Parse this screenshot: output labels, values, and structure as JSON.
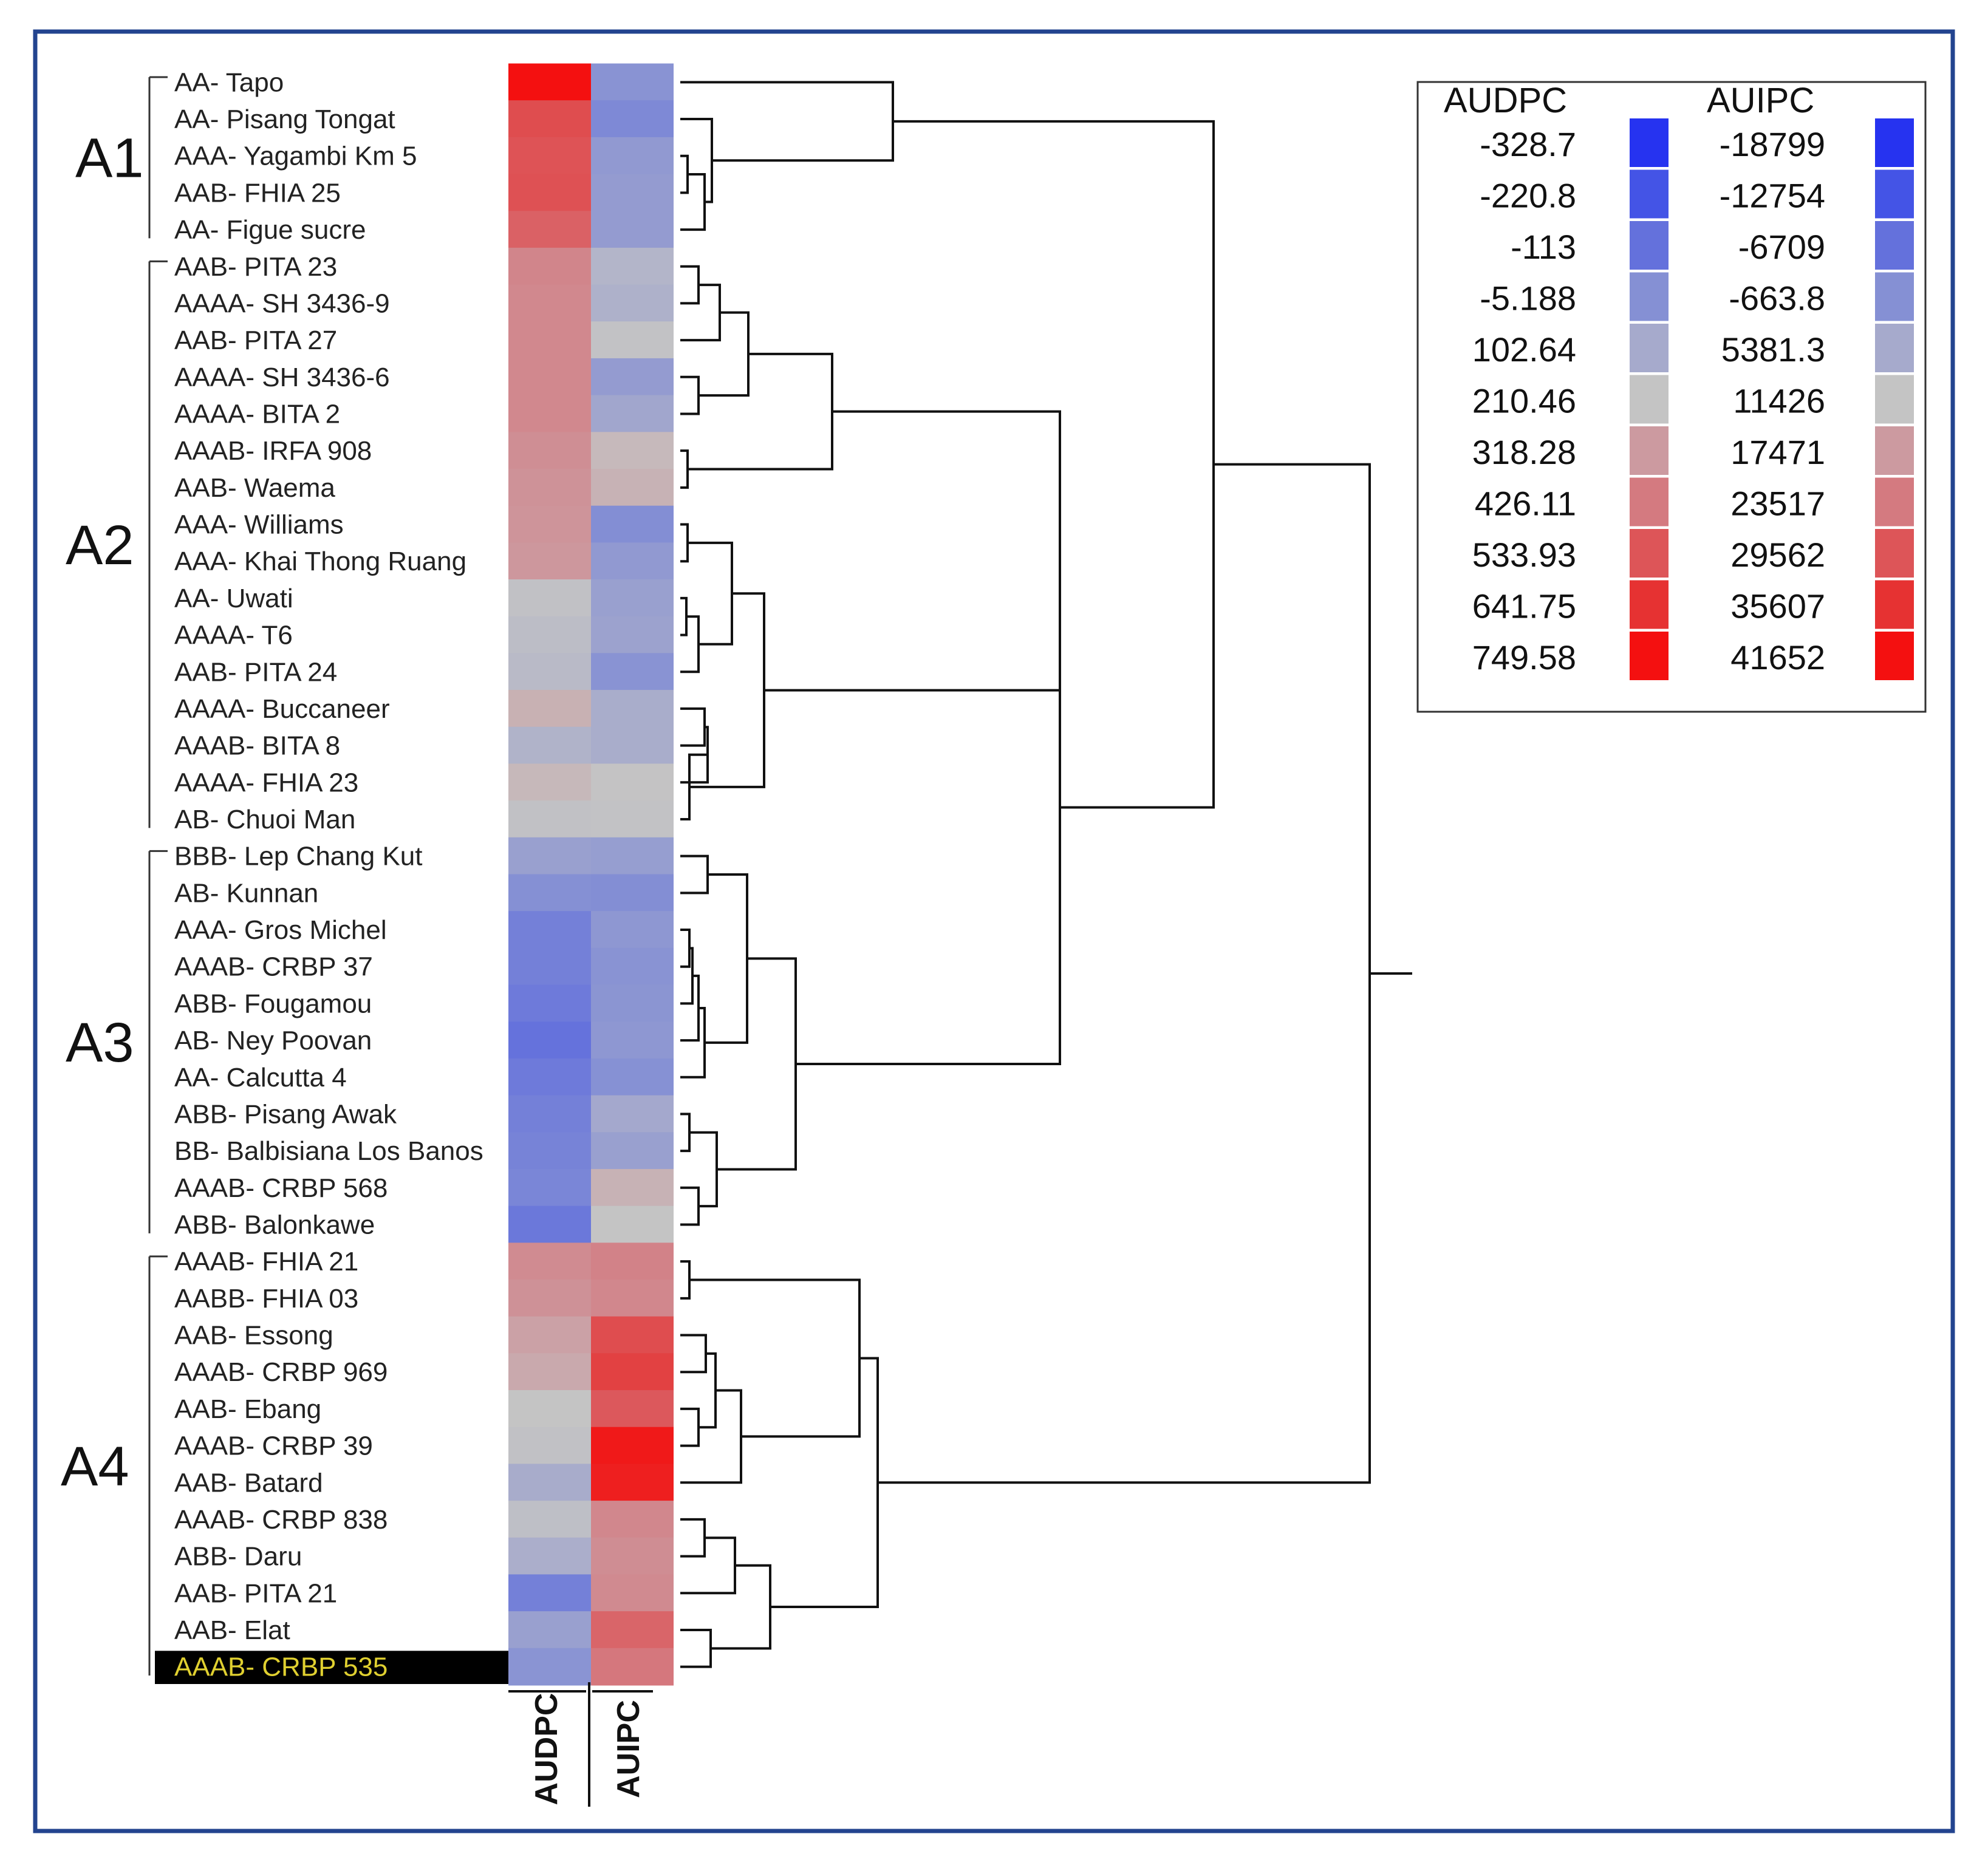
{
  "chart_data": {
    "type": "heatmap",
    "title": "",
    "columns": [
      "AUDPC",
      "AUIPC"
    ],
    "groups": [
      "A1",
      "A2",
      "A3",
      "A4"
    ],
    "rows": [
      {
        "group": "A1",
        "genome": "AA",
        "cultivar": "Tapo",
        "label": "AA- Tapo",
        "audpc": 749.58,
        "auipc": 0
      },
      {
        "group": "A1",
        "genome": "AA",
        "cultivar": "Pisang Tongat",
        "label": "AA- Pisang Tongat",
        "audpc": 560,
        "auipc": -2000
      },
      {
        "group": "A1",
        "genome": "AAA",
        "cultivar": "Yagambi Km 5",
        "label": "AAA- Yagambi Km 5",
        "audpc": 540,
        "auipc": 1500
      },
      {
        "group": "A1",
        "genome": "AAB",
        "cultivar": "FHIA 25",
        "label": "AAB- FHIA 25",
        "audpc": 545,
        "auipc": 2000
      },
      {
        "group": "A1",
        "genome": "AA",
        "cultivar": "Figue sucre",
        "label": "AA- Figue sucre",
        "audpc": 500,
        "auipc": 2000
      },
      {
        "group": "A2",
        "genome": "AAB",
        "cultivar": "PITA 23",
        "label": "AAB- PITA 23",
        "audpc": 390,
        "auipc": 8000
      },
      {
        "group": "A2",
        "genome": "AAAA",
        "cultivar": "SH 3436-9",
        "label": "AAAA- SH 3436-9",
        "audpc": 380,
        "auipc": 7000
      },
      {
        "group": "A2",
        "genome": "AAB",
        "cultivar": "PITA 27",
        "label": "AAB- PITA 27",
        "audpc": 380,
        "auipc": 11000
      },
      {
        "group": "A2",
        "genome": "AAAA",
        "cultivar": "SH 3436-6",
        "label": "AAAA- SH 3436-6",
        "audpc": 380,
        "auipc": 2000
      },
      {
        "group": "A2",
        "genome": "AAAA",
        "cultivar": "BITA 2",
        "label": "AAAA- BITA 2",
        "audpc": 380,
        "auipc": 4500
      },
      {
        "group": "A2",
        "genome": "AAAB",
        "cultivar": "IRFA 908",
        "label": "AAAB- IRFA 908",
        "audpc": 360,
        "auipc": 13000
      },
      {
        "group": "A2",
        "genome": "AAB",
        "cultivar": "Waema",
        "label": "AAB- Waema",
        "audpc": 345,
        "auipc": 14000
      },
      {
        "group": "A2",
        "genome": "AAA",
        "cultivar": "Williams",
        "label": "AAA- Williams",
        "audpc": 340,
        "auipc": -1000
      },
      {
        "group": "A2",
        "genome": "AAA",
        "cultivar": "Khai Thong Ruang",
        "label": "AAA- Khai Thong Ruang",
        "audpc": 330,
        "auipc": 1500
      },
      {
        "group": "A2",
        "genome": "AA",
        "cultivar": "Uwati",
        "label": "AA- Uwati",
        "audpc": 200,
        "auipc": 3000
      },
      {
        "group": "A2",
        "genome": "AAAA",
        "cultivar": "T6",
        "label": "AAAA- T6",
        "audpc": 180,
        "auipc": 3500
      },
      {
        "group": "A2",
        "genome": "AAB",
        "cultivar": "PITA 24",
        "label": "AAB- PITA 24",
        "audpc": 170,
        "auipc": 0
      },
      {
        "group": "A2",
        "genome": "AAAA",
        "cultivar": "Buccaneer",
        "label": "AAAA- Buccaneer",
        "audpc": 260,
        "auipc": 6000
      },
      {
        "group": "A2",
        "genome": "AAAB",
        "cultivar": "BITA 8",
        "label": "AAAB- BITA 8",
        "audpc": 140,
        "auipc": 6000
      },
      {
        "group": "A2",
        "genome": "AAAA",
        "cultivar": "FHIA 23",
        "label": "AAAA- FHIA 23",
        "audpc": 240,
        "auipc": 11500
      },
      {
        "group": "A2",
        "genome": "AB",
        "cultivar": "Chuoi Man",
        "label": "AB- Chuoi Man",
        "audpc": 200,
        "auipc": 11000
      },
      {
        "group": "A3",
        "genome": "BBB",
        "cultivar": "Lep Chang Kut",
        "label": "BBB- Lep Chang Kut",
        "audpc": 60,
        "auipc": 2500
      },
      {
        "group": "A3",
        "genome": "AB",
        "cultivar": "Kunnan",
        "label": "AB- Kunnan",
        "audpc": -5,
        "auipc": -1000
      },
      {
        "group": "A3",
        "genome": "AAA",
        "cultivar": "Gros Michel",
        "label": "AAA- Gros Michel",
        "audpc": -60,
        "auipc": 1000
      },
      {
        "group": "A3",
        "genome": "AAAB",
        "cultivar": "CRBP 37",
        "label": "AAAB- CRBP 37",
        "audpc": -60,
        "auipc": 0
      },
      {
        "group": "A3",
        "genome": "ABB",
        "cultivar": "Fougamou",
        "label": "ABB- Fougamou",
        "audpc": -80,
        "auipc": 500
      },
      {
        "group": "A3",
        "genome": "AB",
        "cultivar": "Ney Poovan",
        "label": "AB- Ney Poovan",
        "audpc": -110,
        "auipc": 1000
      },
      {
        "group": "A3",
        "genome": "AA",
        "cultivar": "Calcutta 4",
        "label": "AA- Calcutta 4",
        "audpc": -80,
        "auipc": -500
      },
      {
        "group": "A3",
        "genome": "ABB",
        "cultivar": "Pisang Awak",
        "label": "ABB- Pisang Awak",
        "audpc": -60,
        "auipc": 5000
      },
      {
        "group": "A3",
        "genome": "BB",
        "cultivar": "Balbisiana Los Banos",
        "label": "BB- Balbisiana Los Banos",
        "audpc": -50,
        "auipc": 3000
      },
      {
        "group": "A3",
        "genome": "AAAB",
        "cultivar": "CRBP 568",
        "label": "AAAB- CRBP 568",
        "audpc": -40,
        "auipc": 14000
      },
      {
        "group": "A3",
        "genome": "ABB",
        "cultivar": "Balonkawe",
        "label": "ABB- Balonkawe",
        "audpc": -90,
        "auipc": 11400
      },
      {
        "group": "A4",
        "genome": "AAAB",
        "cultivar": "FHIA 21",
        "label": "AAAB- FHIA 21",
        "audpc": 370,
        "auipc": 22000
      },
      {
        "group": "A4",
        "genome": "AABB",
        "cultivar": "FHIA 03",
        "label": "AABB- FHIA 03",
        "audpc": 350,
        "auipc": 21000
      },
      {
        "group": "A4",
        "genome": "AAB",
        "cultivar": "Essong",
        "label": "AAB- Essong",
        "audpc": 300,
        "auipc": 31000
      },
      {
        "group": "A4",
        "genome": "AAAB",
        "cultivar": "CRBP 969",
        "label": "AAAB- CRBP 969",
        "audpc": 280,
        "auipc": 33000
      },
      {
        "group": "A4",
        "genome": "AAB",
        "cultivar": "Ebang",
        "label": "AAB- Ebang",
        "audpc": 210,
        "auipc": 29000
      },
      {
        "group": "A4",
        "genome": "AAAB",
        "cultivar": "CRBP 39",
        "label": "AAAB- CRBP 39",
        "audpc": 200,
        "auipc": 40000
      },
      {
        "group": "A4",
        "genome": "AAB",
        "cultivar": "Batard",
        "label": "AAB- Batard",
        "audpc": 110,
        "auipc": 39000
      },
      {
        "group": "A4",
        "genome": "AAAB",
        "cultivar": "CRBP 838",
        "label": "AAAB- CRBP 838",
        "audpc": 190,
        "auipc": 21000
      },
      {
        "group": "A4",
        "genome": "ABB",
        "cultivar": "Daru",
        "label": "ABB- Daru",
        "audpc": 120,
        "auipc": 20000
      },
      {
        "group": "A4",
        "genome": "AAB",
        "cultivar": "PITA 21",
        "label": "AAB- PITA 21",
        "audpc": -60,
        "auipc": 20500
      },
      {
        "group": "A4",
        "genome": "AAB",
        "cultivar": "Elat",
        "label": "AAB- Elat",
        "audpc": 60,
        "auipc": 27000
      },
      {
        "group": "A4",
        "genome": "AAAB",
        "cultivar": "CRBP 535",
        "label": "AAAB- CRBP 535",
        "audpc": 10,
        "auipc": 24000,
        "highlighted": true
      }
    ],
    "legend": {
      "placement": "top-right",
      "audpc_title": "AUDPC",
      "auipc_title": "AUIPC",
      "audpc_values": [
        "-328.7",
        "-220.8",
        "-113",
        "-5.188",
        "102.64",
        "210.46",
        "318.28",
        "426.11",
        "533.93",
        "641.75",
        "749.58"
      ],
      "auipc_values": [
        "-18799",
        "-12754",
        "-6709",
        "-663.8",
        "5381.3",
        "11426",
        "17471",
        "23517",
        "29562",
        "35607",
        "41652"
      ],
      "colors": [
        "#2633f0",
        "#4454e6",
        "#6471dc",
        "#8590d4",
        "#a6aacc",
        "#c4c4c4",
        "#cc9aa0",
        "#d47a80",
        "#dd5558",
        "#e63232",
        "#f41010"
      ]
    },
    "dendrogram": {
      "orientation": "right",
      "clusters": [
        {
          "left": [
            "AAA- Yagambi Km 5",
            "AAB- FHIA 25"
          ],
          "right": [
            "AA- Figue sucre"
          ]
        },
        {
          "left": [
            "AA- Pisang Tongat"
          ],
          "right": [
            "AAA- Yagambi Km 5",
            "AAB- FHIA 25",
            "AA- Figue sucre"
          ]
        },
        {
          "left": [
            "AA- Tapo"
          ],
          "right": [
            "AA- Pisang Tongat",
            "AAA- Yagambi Km 5",
            "AAB- FHIA 25",
            "AA- Figue sucre"
          ]
        }
      ]
    }
  }
}
